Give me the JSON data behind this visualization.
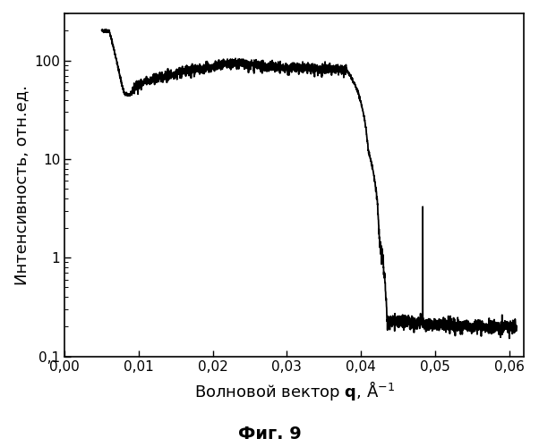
{
  "ylabel": "Интенсивность, отн.ед.",
  "caption": "Фиг. 9",
  "xlim": [
    0.0,
    0.062
  ],
  "ylim": [
    0.1,
    300
  ],
  "xticks": [
    0.0,
    0.01,
    0.02,
    0.03,
    0.04,
    0.05,
    0.06
  ],
  "xtick_labels": [
    "0,00",
    "0,01",
    "0,02",
    "0,03",
    "0,04",
    "0,05",
    "0,06"
  ],
  "yticks": [
    0.1,
    1,
    10,
    100
  ],
  "ytick_labels": [
    "0,1",
    "1",
    "10",
    "100"
  ],
  "line_color": "#000000",
  "background_color": "#ffffff",
  "fig_caption_fontsize": 14,
  "axis_label_fontsize": 13,
  "tick_labelsize": 11,
  "line_width": 1.3
}
